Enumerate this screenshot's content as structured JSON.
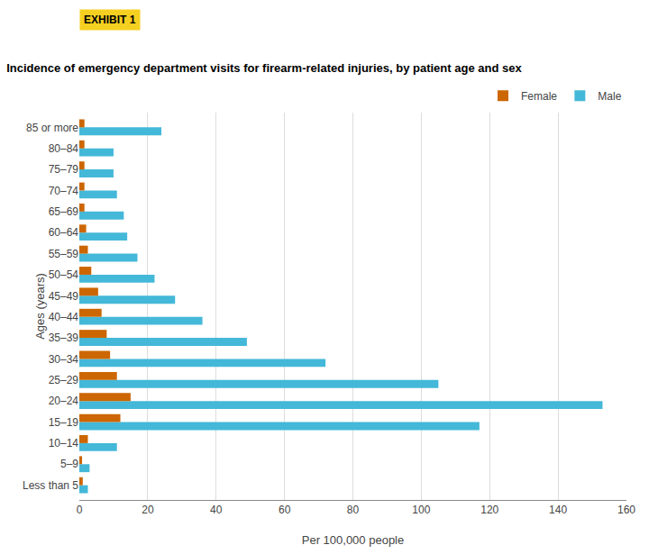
{
  "chart_data": {
    "type": "bar",
    "orientation": "horizontal",
    "title": "Incidence of emergency department visits for firearm-related injuries, by patient age and sex",
    "annotations": [
      "EXHIBIT 1"
    ],
    "xlabel": "Per 100,000 people",
    "ylabel": "Ages (years)",
    "categories": [
      "Less than 5",
      "5–9",
      "10–14",
      "15–19",
      "20–24",
      "25–29",
      "30–34",
      "35–39",
      "40–44",
      "45–49",
      "50–54",
      "55–59",
      "60–64",
      "65–69",
      "70–74",
      "75–79",
      "80–84",
      "85 or more"
    ],
    "series": [
      {
        "name": "Female",
        "color": "#cc6600",
        "values": [
          1.0,
          0.8,
          2.5,
          12.0,
          15.0,
          11.0,
          9.0,
          8.0,
          6.5,
          5.5,
          3.5,
          2.5,
          2.0,
          1.5,
          1.5,
          1.5,
          1.5,
          1.5
        ]
      },
      {
        "name": "Male",
        "color": "#44b8d8",
        "values": [
          2.5,
          3.0,
          11.0,
          117.0,
          153.0,
          105.0,
          72.0,
          49.0,
          36.0,
          28.0,
          22.0,
          17.0,
          14.0,
          13.0,
          11.0,
          10.0,
          10.0,
          24.0
        ]
      }
    ],
    "xlim": [
      0,
      160
    ],
    "xticks": [
      0,
      20,
      40,
      60,
      80,
      100,
      120,
      140,
      160
    ],
    "grid": true,
    "legend": "upper right"
  }
}
